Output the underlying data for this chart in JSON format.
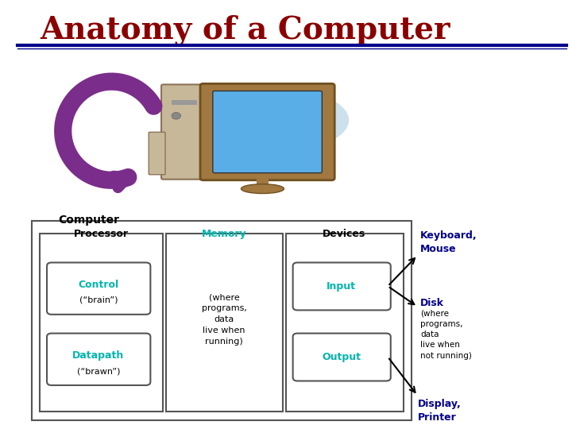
{
  "title": "Anatomy of a Computer",
  "title_color": "#8B0000",
  "title_fontsize": 28,
  "bg_color": "#FFFFFF",
  "separator_color": "#00008B",
  "computer_label": "Computer",
  "processor_label": "Processor",
  "control_label_line1": "Control",
  "control_label_line2": "(“brain”)",
  "datapath_label_line1": "Datapath",
  "datapath_label_line2": "(“brawn”)",
  "teal_color": "#00B5AD",
  "memory_label": "Memory",
  "memory_text": "(where\nprograms,\ndata\nlive when\nrunning)",
  "devices_label": "Devices",
  "input_label": "Input",
  "output_label": "Output",
  "keyboard_mouse_label": "Keyboard,\nMouse",
  "keyboard_mouse_color": "#00008B",
  "disk_label": "Disk",
  "disk_color": "#00008B",
  "disk_text": "(where\nprograms,\ndata\nlive when\nnot running)",
  "display_printer_label": "Display,\nPrinter",
  "display_printer_color": "#00008B",
  "arrow_color": "#000000",
  "purple_color": "#7B2D8B",
  "box_border_color": "#555555"
}
